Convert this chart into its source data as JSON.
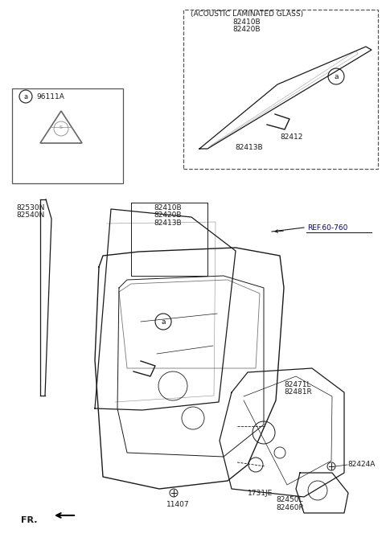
{
  "bg_color": "#ffffff",
  "line_color": "#1a1a1a",
  "text_color": "#1a1a1a",
  "parts": {
    "acoustic_label": "(ACOUSTIC LAMINATED GLASS)",
    "part_82410B": "82410B",
    "part_82420B": "82420B",
    "part_82412": "82412",
    "part_82413B": "82413B",
    "part_82530N": "82530N",
    "part_82540N": "82540N",
    "part_82471L": "82471L",
    "part_82481R": "82481R",
    "part_82424A": "82424A",
    "part_82450L": "82450L",
    "part_82460R": "82460R",
    "part_1731JE": "1731JE",
    "part_11407": "11407",
    "part_96111A": "96111A",
    "ref_60_760": "REF.60-760",
    "label_a": "a",
    "label_FR": "FR."
  }
}
